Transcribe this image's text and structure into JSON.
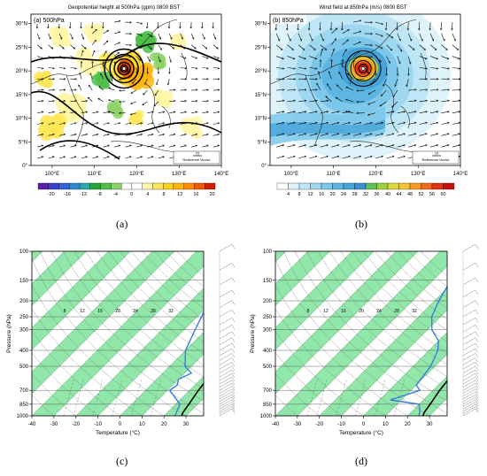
{
  "captions": [
    "(a)",
    "(b)",
    "(c)",
    "(d)"
  ],
  "chart_data": [
    {
      "type": "heatmap",
      "title": "Geopotential height at 500hPa (gpm) 0800 BST",
      "panel_label": "(a) 500hPa",
      "lat_ticks": [
        "0°",
        "5°N",
        "10°N",
        "15°N",
        "20°N",
        "25°N",
        "30°N"
      ],
      "lon_ticks": [
        "100°E",
        "110°E",
        "120°E",
        "130°E",
        "140°E"
      ],
      "colorbar": {
        "labels": [
          "-20",
          "-16",
          "-12",
          "-8",
          "-4",
          "0",
          "4",
          "8",
          "12",
          "16",
          "20"
        ],
        "colors": [
          "#5b1fa6",
          "#3c3fd0",
          "#2f63d8",
          "#2d8ad2",
          "#2aa9a6",
          "#29a33a",
          "#4fbf49",
          "#8fd26b",
          "#ffffff",
          "#ffffff",
          "#fff6a8",
          "#ffe659",
          "#ffd21a",
          "#ffb40a",
          "#ff8c00",
          "#f05a00",
          "#d41e00"
        ]
      },
      "reference_vector": "Reference Vector",
      "reference_value": "15"
    },
    {
      "type": "heatmap",
      "title": "Wind field at 850hPa (m/s) 0800 BST",
      "panel_label": "(b) 850hPa",
      "lat_ticks": [
        "0°",
        "5°N",
        "10°N",
        "15°N",
        "20°N",
        "25°N",
        "30°N"
      ],
      "lon_ticks": [
        "100°E",
        "110°E",
        "120°E",
        "130°E",
        "140°E"
      ],
      "colorbar": {
        "labels": [
          "4",
          "8",
          "12",
          "16",
          "20",
          "24",
          "28",
          "32",
          "36",
          "40",
          "44",
          "48",
          "52",
          "56",
          "60"
        ],
        "colors": [
          "#ffffff",
          "#dff3fb",
          "#bfe6f6",
          "#9dd7f0",
          "#7cc7ea",
          "#5db6e2",
          "#45a4d8",
          "#3a92cc",
          "#5fbf5a",
          "#9ccf3f",
          "#d9d93a",
          "#f5c430",
          "#f59a25",
          "#ee6a1a",
          "#e03512",
          "#c8120c"
        ]
      },
      "reference_vector": "Reference Vector",
      "reference_value": "10"
    },
    {
      "type": "line",
      "title": "",
      "xlabel": "Temperature (°C)",
      "ylabel": "Pressure (hPa)",
      "x_ticks": [
        "-40",
        "-30",
        "-20",
        "-10",
        "0",
        "10",
        "20",
        "30"
      ],
      "y_ticks": [
        "100",
        "150",
        "200",
        "250",
        "300",
        "400",
        "500",
        "700",
        "850",
        "1000"
      ],
      "series": [
        {
          "values": [
            [
              -8,
              100
            ],
            [
              -6,
              150
            ],
            [
              1,
              200
            ],
            [
              6,
              250
            ],
            [
              10,
              300
            ],
            [
              17,
              400
            ],
            [
              21,
              500
            ],
            [
              23,
              600
            ],
            [
              24,
              700
            ],
            [
              26,
              850
            ],
            [
              27,
              950
            ],
            [
              28,
              1000
            ]
          ]
        },
        {
          "values": [
            [
              -20,
              100
            ],
            [
              -18,
              130
            ],
            [
              -12,
              200
            ],
            [
              -8,
              250
            ],
            [
              -5,
              300
            ],
            [
              0,
              400
            ],
            [
              7,
              500
            ],
            [
              13,
              550
            ],
            [
              10,
              600
            ],
            [
              12,
              650
            ],
            [
              11,
              700
            ],
            [
              22,
              850
            ],
            [
              24,
              950
            ],
            [
              25,
              1000
            ]
          ]
        }
      ]
    },
    {
      "type": "line",
      "title": "",
      "xlabel": "Temperature (°C)",
      "ylabel": "Pressure (hPa)",
      "x_ticks": [
        "-40",
        "-30",
        "-20",
        "-10",
        "0",
        "10",
        "20",
        "30"
      ],
      "y_ticks": [
        "100",
        "150",
        "200",
        "250",
        "300",
        "400",
        "500",
        "700",
        "850",
        "1000"
      ],
      "series": [
        {
          "values": [
            [
              -8,
              100
            ],
            [
              -4,
              150
            ],
            [
              3,
              200
            ],
            [
              7,
              250
            ],
            [
              10,
              300
            ],
            [
              17,
              400
            ],
            [
              20,
              500
            ],
            [
              22,
              600
            ],
            [
              23,
              700
            ],
            [
              25,
              850
            ],
            [
              26,
              950
            ],
            [
              27,
              1000
            ]
          ]
        },
        {
          "values": [
            [
              -25,
              100
            ],
            [
              -22,
              150
            ],
            [
              -18,
              200
            ],
            [
              -14,
              250
            ],
            [
              -8,
              300
            ],
            [
              0,
              350
            ],
            [
              4,
              400
            ],
            [
              8,
              500
            ],
            [
              10,
              650
            ],
            [
              14,
              700
            ],
            [
              5,
              800
            ],
            [
              20,
              850
            ],
            [
              24,
              950
            ],
            [
              25,
              1000
            ]
          ]
        }
      ]
    }
  ]
}
